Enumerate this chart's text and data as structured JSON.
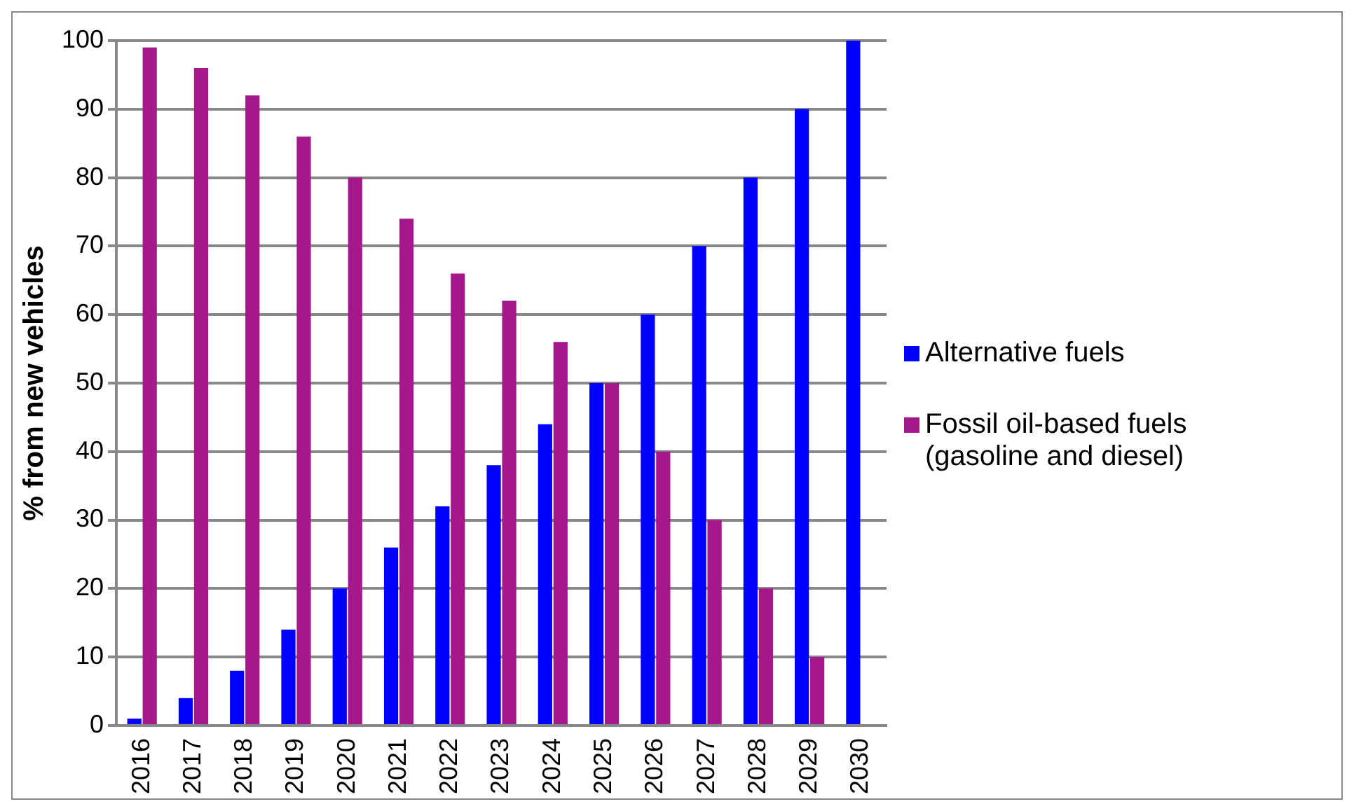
{
  "chart_data": {
    "type": "bar",
    "ylabel": "% from new vehicles",
    "categories": [
      "2016",
      "2017",
      "2018",
      "2019",
      "2020",
      "2021",
      "2022",
      "2023",
      "2024",
      "2025",
      "2026",
      "2027",
      "2028",
      "2029",
      "2030"
    ],
    "series": [
      {
        "name": "Alternative fuels",
        "color": "#0000ff",
        "values": [
          1,
          4,
          8,
          14,
          20,
          26,
          32,
          38,
          44,
          50,
          60,
          70,
          80,
          90,
          100
        ]
      },
      {
        "name": "Fossil oil-based fuels (gasoline and diesel)",
        "color": "#a5188c",
        "values": [
          99,
          96,
          92,
          86,
          80,
          74,
          66,
          62,
          56,
          50,
          40,
          30,
          20,
          10,
          0
        ]
      }
    ],
    "ylim": [
      0,
      100
    ],
    "yticks": [
      0,
      10,
      20,
      30,
      40,
      50,
      60,
      70,
      80,
      90,
      100
    ],
    "grid": "y",
    "legend": "right"
  }
}
